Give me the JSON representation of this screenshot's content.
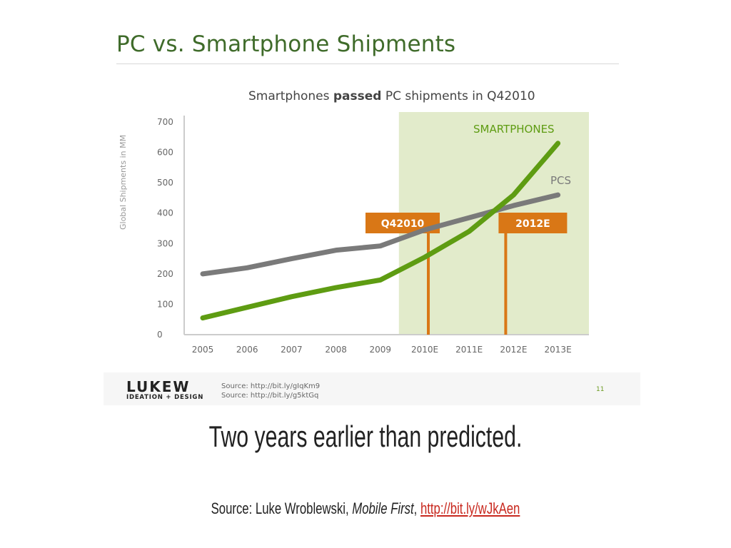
{
  "image": {
    "title": "PC vs. Smartphone Shipments",
    "footer": {
      "logo_top": "LUKEW",
      "logo_bottom": "IDEATION + DESIGN",
      "sources": [
        "Source: http://bit.ly/gIqKm9",
        "Source: http://bit.ly/g5ktGq"
      ],
      "page_number": "11"
    }
  },
  "chart_data": {
    "type": "line",
    "title_parts": [
      "Smartphones ",
      "passed",
      " PC shipments in Q42010"
    ],
    "ylabel": "Global Shipments in MM",
    "xlabel": "",
    "ylim": [
      0,
      700
    ],
    "yticks": [
      0,
      100,
      200,
      300,
      400,
      500,
      600,
      700
    ],
    "categories": [
      "2005",
      "2006",
      "2007",
      "2008",
      "2009",
      "2010E",
      "2011E",
      "2012E",
      "2013E"
    ],
    "projected_from": "2009",
    "series": [
      {
        "name": "PCS",
        "color": "#7a7a7a",
        "values": [
          200,
          220,
          250,
          278,
          292,
          345,
          385,
          425,
          460
        ]
      },
      {
        "name": "SMARTPHONES",
        "color": "#5e9c12",
        "values": [
          55,
          90,
          125,
          155,
          180,
          255,
          340,
          460,
          630
        ]
      }
    ],
    "annotations": [
      {
        "label": "Q42010",
        "x_category": "2010E",
        "color": "#d97716"
      },
      {
        "label": "2012E",
        "x_category": "2012E",
        "color": "#d97716"
      }
    ],
    "shaded_region_color": "#e2ebcb",
    "grid": false
  },
  "caption": "Two years earlier than predicted.",
  "source": {
    "prefix": "Source: Luke Wroblewski, ",
    "book": "Mobile First",
    "separator": ", ",
    "link": "http://bit.ly/wJkAen"
  }
}
